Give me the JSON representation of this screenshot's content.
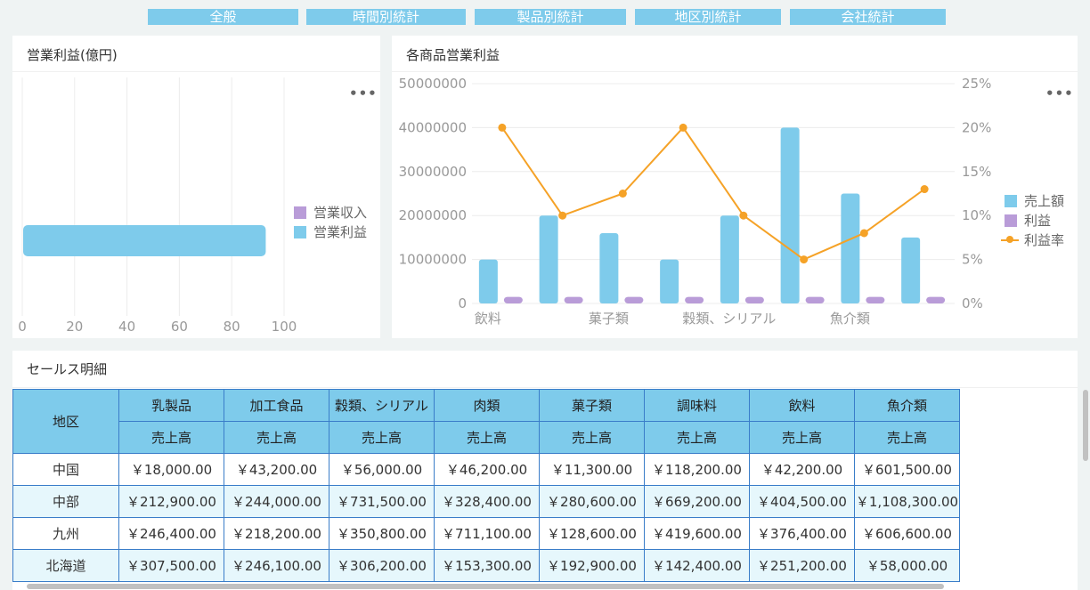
{
  "tabs": [
    {
      "label": "全般"
    },
    {
      "label": "時間別統計"
    },
    {
      "label": "製品別統計"
    },
    {
      "label": "地区別統計"
    },
    {
      "label": "会社統計"
    }
  ],
  "left_panel": {
    "title": "営業利益(億円)",
    "more": "•••",
    "legend": [
      {
        "label": "営業収入",
        "color": "#b99cd8"
      },
      {
        "label": "営業利益",
        "color": "#7ecbeb"
      }
    ]
  },
  "right_panel": {
    "title": "各商品営業利益",
    "more": "•••",
    "legend": [
      {
        "label": "売上額",
        "color": "#7ecbeb"
      },
      {
        "label": "利益",
        "color": "#b99cd8"
      },
      {
        "label": "利益率",
        "color": "#f5a227"
      }
    ]
  },
  "chart_data": [
    {
      "type": "bar",
      "orientation": "horizontal",
      "xlim": [
        0,
        100
      ],
      "xticks": [
        "0",
        "20",
        "40",
        "60",
        "80",
        "100"
      ],
      "series": [
        {
          "name": "営業利益",
          "values": [
            93
          ]
        }
      ],
      "grid": true,
      "legend": "right"
    },
    {
      "type": "bar",
      "categories": [
        "飲料",
        "",
        "菓子類",
        "",
        "穀類、シリアル",
        "",
        "魚介類",
        ""
      ],
      "ylim": [
        0,
        50000000
      ],
      "yticks": [
        "0",
        "10000000",
        "20000000",
        "30000000",
        "40000000",
        "50000000"
      ],
      "y2lim": [
        0,
        25
      ],
      "y2ticks": [
        "0%",
        "5%",
        "10%",
        "15%",
        "20%",
        "25%"
      ],
      "series": [
        {
          "name": "売上額",
          "type": "bar",
          "values": [
            10000000,
            20000000,
            16000000,
            10000000,
            20000000,
            40000000,
            25000000,
            15000000
          ]
        },
        {
          "name": "利益",
          "type": "bar",
          "values": [
            1500000,
            1500000,
            1500000,
            1500000,
            1500000,
            1500000,
            1500000,
            1500000
          ]
        },
        {
          "name": "利益率",
          "type": "line",
          "axis": "right",
          "values": [
            20,
            10,
            12.5,
            20,
            10,
            5,
            8,
            13
          ]
        }
      ],
      "grid": true,
      "legend": "right"
    }
  ],
  "sales": {
    "title": "セールス明細",
    "region_header": "地区",
    "categories": [
      "乳製品",
      "加工食品",
      "穀類、シリアル",
      "肉類",
      "菓子類",
      "調味料",
      "飲料",
      "魚介類"
    ],
    "subheader": "売上高",
    "rows": [
      {
        "region": "中国",
        "values": [
          "￥18,000.00",
          "￥43,200.00",
          "￥56,000.00",
          "￥46,200.00",
          "￥11,300.00",
          "￥118,200.00",
          "￥42,200.00",
          "￥601,500.00"
        ]
      },
      {
        "region": "中部",
        "values": [
          "￥212,900.00",
          "￥244,000.00",
          "￥731,500.00",
          "￥328,400.00",
          "￥280,600.00",
          "￥669,200.00",
          "￥404,500.00",
          "￥1,108,300.00"
        ]
      },
      {
        "region": "九州",
        "values": [
          "￥246,400.00",
          "￥218,200.00",
          "￥350,800.00",
          "￥711,100.00",
          "￥128,600.00",
          "￥419,600.00",
          "￥376,400.00",
          "￥606,600.00"
        ]
      },
      {
        "region": "北海道",
        "values": [
          "￥307,500.00",
          "￥246,100.00",
          "￥306,200.00",
          "￥153,300.00",
          "￥192,900.00",
          "￥142,400.00",
          "￥251,200.00",
          "￥58,000.00"
        ]
      }
    ]
  }
}
